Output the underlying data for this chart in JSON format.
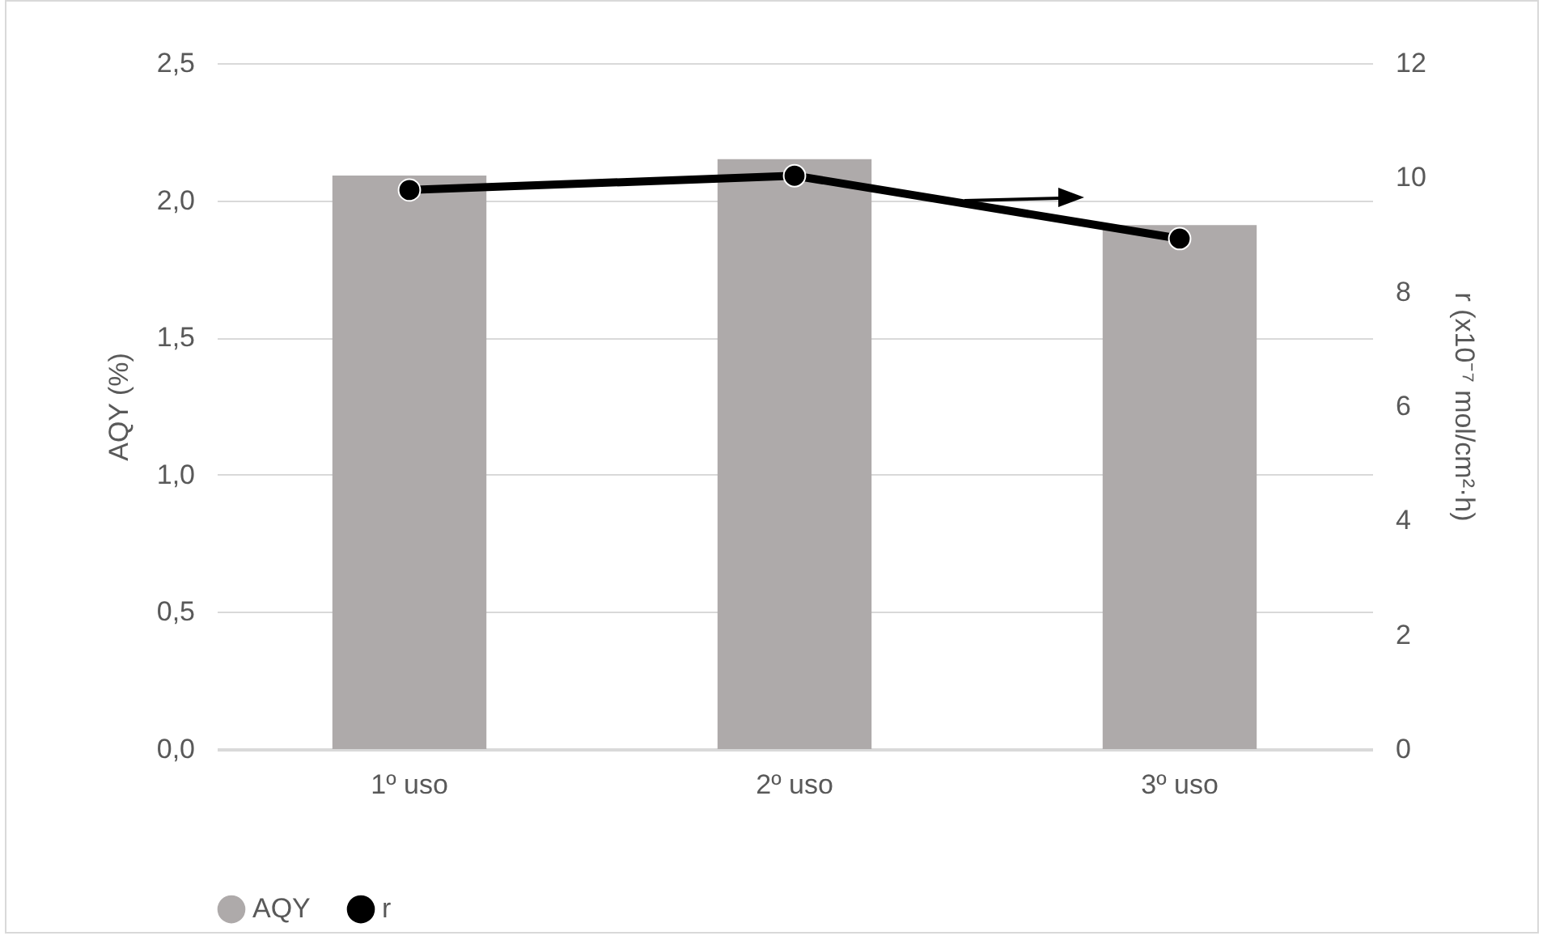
{
  "chart_data": {
    "type": "bar",
    "categories": [
      "1º uso",
      "2º uso",
      "3º uso"
    ],
    "ylabel": "AQY (%)",
    "y2label": "r (x10⁻⁷ mol/cm²·h)",
    "series": [
      {
        "name": "AQY",
        "color": "#aeaaaa",
        "values": [
          2.09,
          2.15,
          1.91
        ]
      },
      {
        "name": "r",
        "type": "line",
        "axis": "y2",
        "marker": "circle",
        "color": "#000000",
        "values": [
          9.78,
          10.03,
          8.93
        ]
      }
    ],
    "ylim": [
      0,
      2.5
    ],
    "yticks": [
      {
        "value": 0,
        "label": "0,0"
      },
      {
        "value": 0.5,
        "label": "0,5"
      },
      {
        "value": 1,
        "label": "1,0"
      },
      {
        "value": 1.5,
        "label": "1,5"
      },
      {
        "value": 2,
        "label": "2,0"
      },
      {
        "value": 2.5,
        "label": "2,5"
      }
    ],
    "y2lim": [
      0,
      12
    ],
    "y2ticks": [
      0,
      2,
      4,
      6,
      8,
      10,
      12
    ],
    "grid": "y",
    "legend": "bottom"
  }
}
